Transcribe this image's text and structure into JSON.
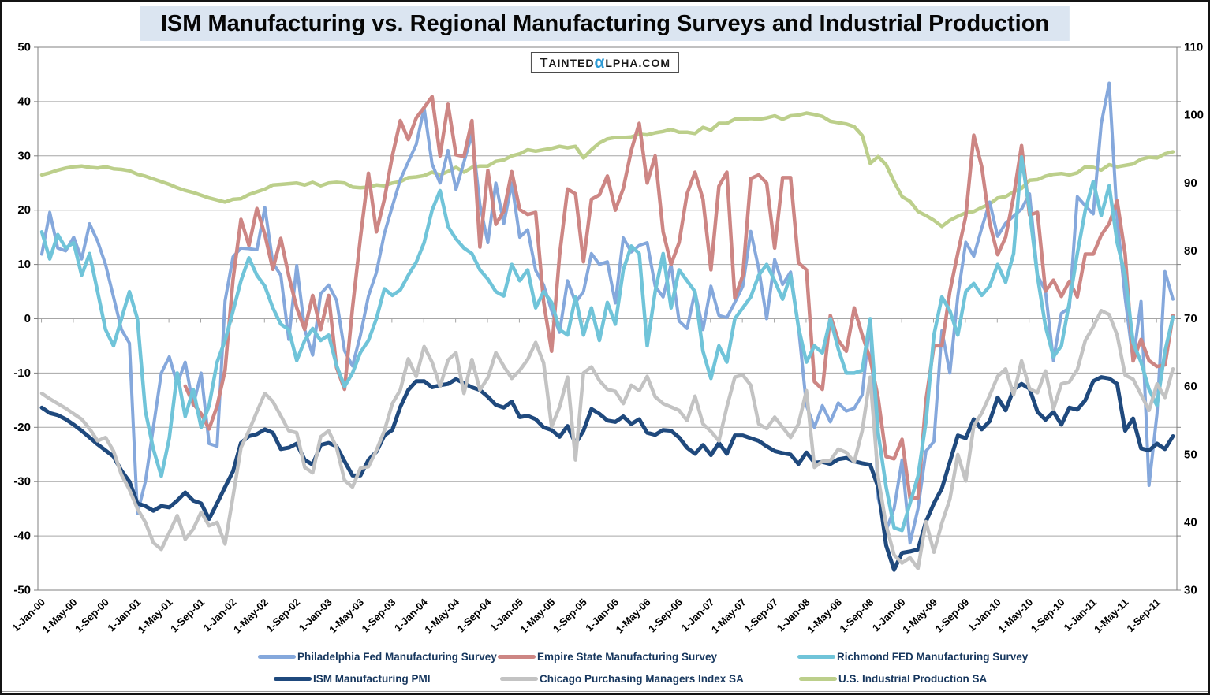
{
  "title": "ISM Manufacturing vs. Regional Manufacturing Surveys and Industrial Production",
  "watermark": {
    "part1": "T",
    "part2": "AINTED",
    "alpha": "α",
    "part3": "LPHA.COM"
  },
  "chart_data": {
    "type": "line",
    "x_tick_labels": [
      "1-Jan-00",
      "1-May-00",
      "1-Sep-00",
      "1-Jan-01",
      "1-May-01",
      "1-Sep-01",
      "1-Jan-02",
      "1-May-02",
      "1-Sep-02",
      "1-Jan-03",
      "1-May-03",
      "1-Sep-03",
      "1-Jan-04",
      "1-May-04",
      "1-Sep-04",
      "1-Jan-05",
      "1-May-05",
      "1-Sep-05",
      "1-Jan-06",
      "1-May-06",
      "1-Sep-06",
      "1-Jan-07",
      "1-May-07",
      "1-Sep-07",
      "1-Jan-08",
      "1-May-08",
      "1-Sep-08",
      "1-Jan-09",
      "1-May-09",
      "1-Sep-09",
      "1-Jan-10",
      "1-May-10",
      "1-Sep-10",
      "1-Jan-11",
      "1-May-11",
      "1-Sep-11"
    ],
    "x_tick_every_n_months": 4,
    "months_span": "Jan-2000 to Nov-2011, monthly",
    "left_axis": {
      "ticks": [
        "50",
        "40",
        "30",
        "20",
        "10",
        "0",
        "-10",
        "-20",
        "-30",
        "-40",
        "-50"
      ],
      "min": -50,
      "max": 50
    },
    "right_axis": {
      "ticks": [
        "110",
        "100",
        "90",
        "80",
        "70",
        "60",
        "50",
        "40",
        "30"
      ],
      "min": 30,
      "max": 110
    },
    "grid_color": "#A6A6A6",
    "border_color": "#808080",
    "legend_position": "bottom, two rows",
    "series": [
      {
        "name": "Philadelphia Fed Manufacturing Survey",
        "axis": "left",
        "color": "#85A8DC",
        "width": 4,
        "values": [
          11.9,
          19.6,
          13,
          12.5,
          15,
          11,
          17.5,
          14.3,
          10,
          4,
          -2,
          -4.5,
          -35.9,
          -30,
          -20,
          -10,
          -7,
          -12,
          -8,
          -16,
          -10,
          -23,
          -23.5,
          3.3,
          11.4,
          13,
          12.9,
          12.7,
          20.5,
          10.3,
          8,
          -3.8,
          9.8,
          -2,
          -6.7,
          4.6,
          6.2,
          3.4,
          -5.9,
          -8.7,
          -3,
          4.2,
          8.5,
          15.7,
          20.7,
          25.6,
          28.9,
          32.1,
          38.8,
          28.5,
          25,
          31,
          23.8,
          28.9,
          34,
          21,
          14,
          25,
          17.5,
          25,
          15,
          16.4,
          8.9,
          6.2,
          1.5,
          -2.5,
          7,
          3,
          5,
          12,
          10,
          10.5,
          2.9,
          14.9,
          12.3,
          13.5,
          14,
          6,
          4,
          10,
          -0.4,
          -1.8,
          5,
          -2,
          6,
          0.6,
          0.2,
          3,
          6,
          16.1,
          9.2,
          0,
          10.9,
          6.3,
          8.6,
          -1.5,
          -16,
          -20,
          -16,
          -19,
          -15.5,
          -17,
          -16.5,
          -14,
          0,
          -33,
          -39,
          -35,
          -26,
          -41.3,
          -35,
          -24.4,
          -22.6,
          -2.2,
          -10,
          4.2,
          14.1,
          11.5,
          16.7,
          21.5,
          15.2,
          17.6,
          18.9,
          20.2,
          23,
          8,
          5.1,
          -7.7,
          1,
          2,
          22.5,
          20.8,
          19.3,
          35.9,
          43.4,
          18.5,
          3.9,
          -7.7,
          3.2,
          -30.7,
          -17.5,
          8.7,
          3.6
        ]
      },
      {
        "name": "Empire State Manufacturing Survey",
        "axis": "left",
        "color": "#CD8684",
        "width": 4.5,
        "values": [
          null,
          null,
          null,
          null,
          null,
          null,
          null,
          null,
          null,
          null,
          null,
          null,
          null,
          null,
          null,
          null,
          null,
          null,
          -12.4,
          -15.6,
          -17.5,
          -20.3,
          -16.1,
          -9.5,
          7.2,
          18.3,
          13.5,
          20.3,
          15.5,
          9.1,
          14.8,
          7.9,
          2,
          -2,
          4.3,
          -2,
          4.3,
          -9,
          -13,
          2,
          15,
          26.8,
          16,
          22,
          30,
          36.5,
          33,
          37,
          38.9,
          40.9,
          30,
          39.5,
          30.2,
          29.9,
          36.5,
          13.2,
          27.3,
          17.4,
          19.8,
          27.1,
          20.1,
          19.2,
          19.6,
          3.1,
          -6,
          11.7,
          23.9,
          23,
          10.5,
          22,
          22.8,
          26.3,
          20,
          24,
          31,
          36,
          25,
          30,
          16,
          10,
          14,
          23,
          27,
          22,
          9,
          24.4,
          27,
          3.8,
          8,
          25.8,
          26.5,
          25,
          13,
          26,
          26,
          10.3,
          9,
          -11.6,
          -13,
          0.6,
          -4,
          -6,
          2,
          -3,
          -7.4,
          -14.6,
          -25.4,
          -25.8,
          -22.2,
          -33,
          -33,
          -15,
          -5,
          -5,
          5,
          12.1,
          18.9,
          33.8,
          28,
          17.6,
          11.8,
          15,
          22.5,
          31.9,
          19.1,
          19.6,
          5.1,
          7.1,
          4.1,
          6.9,
          4,
          11.9,
          11.9,
          15.4,
          17.5,
          21.7,
          11.9,
          -7.8,
          -3.8,
          -7.7,
          -8.8,
          -8.5,
          0.6
        ]
      },
      {
        "name": "Richmond FED Manufacturing Survey",
        "axis": "left",
        "color": "#70C4D9",
        "width": 4.5,
        "values": [
          16,
          11,
          15.5,
          13,
          14,
          8,
          12,
          5,
          -2,
          -5,
          0,
          5,
          0,
          -17,
          -24,
          -29,
          -22,
          -10,
          -18,
          -13,
          -20,
          -16,
          -8,
          -4,
          1.4,
          7,
          11.2,
          8,
          6,
          2,
          -1,
          -2,
          -7.7,
          -4,
          -1.8,
          -4,
          -3,
          -8.6,
          -12.5,
          -10,
          -6.2,
          -4,
          0,
          5.5,
          4.3,
          5.3,
          8,
          10.4,
          14,
          20,
          23.6,
          17,
          14.7,
          13,
          12,
          9,
          7.3,
          5,
          4.2,
          10,
          7,
          9,
          2,
          5,
          3,
          -2,
          -3,
          4,
          -3,
          2,
          -4,
          3,
          -1,
          9,
          13.4,
          12,
          -5,
          5,
          12,
          2,
          9,
          7,
          5,
          -6,
          -11,
          -5,
          -8,
          0,
          2,
          4,
          8,
          10,
          7,
          3.6,
          8,
          -1.6,
          -8,
          -5,
          -6.3,
          0,
          -5.6,
          -10,
          -10,
          -9.5,
          0,
          -21,
          -31,
          -38.5,
          -39,
          -34,
          -29,
          -19,
          -3,
          4,
          1.5,
          -3,
          5,
          6.5,
          4.3,
          6,
          10,
          6.7,
          12,
          29.8,
          20,
          7.8,
          -1.4,
          -7,
          -5,
          3,
          12,
          20,
          25.3,
          19,
          24.5,
          14,
          8,
          -4.4,
          -8,
          -13,
          -16,
          -6,
          0.3
        ]
      },
      {
        "name": "ISM Manufacturing PMI",
        "axis": "right",
        "color": "#1F497D",
        "width": 5,
        "values": [
          56.9,
          56.1,
          55.8,
          55.2,
          54.4,
          53.5,
          52.5,
          51.5,
          50.6,
          49.7,
          47.6,
          46,
          42.8,
          42.4,
          41.7,
          42.4,
          42.2,
          43.2,
          44.4,
          43.2,
          42.8,
          40.5,
          42.8,
          45.2,
          47.5,
          51.7,
          52.7,
          53,
          53.7,
          53.2,
          50.8,
          51,
          51.6,
          49.2,
          48.5,
          51.4,
          51.7,
          51.2,
          49,
          46.9,
          46.9,
          49.2,
          50.4,
          52.8,
          53.6,
          57,
          59.5,
          60.8,
          60.8,
          59.9,
          60.2,
          60.4,
          61.1,
          60.5,
          59.9,
          59.5,
          58.5,
          57.3,
          56.9,
          57.8,
          55.5,
          55.7,
          55.2,
          54,
          53.6,
          52.6,
          54.2,
          51.6,
          53.5,
          56.7,
          56,
          55,
          54.8,
          55.6,
          54.5,
          55.2,
          53.2,
          52.9,
          53.6,
          53.5,
          52.5,
          51,
          50.1,
          51.4,
          49.9,
          51.7,
          50.1,
          52.8,
          52.8,
          52.4,
          52,
          51.2,
          50.5,
          50.2,
          50,
          48.6,
          50.3,
          48.8,
          48.9,
          48.6,
          49.3,
          49.5,
          49,
          48.7,
          48.5,
          45.2,
          36.6,
          33,
          35.5,
          35.7,
          36,
          40.1,
          42.8,
          45,
          48.9,
          52.8,
          52.4,
          55.2,
          53.7,
          54.9,
          58.4,
          56.5,
          59.6,
          60.4,
          59.7,
          56.3,
          55.1,
          56.3,
          54.4,
          56.9,
          56.6,
          58,
          60.8,
          61.4,
          61.2,
          60.4,
          53.5,
          55.3,
          50.9,
          50.6,
          51.6,
          50.8,
          52.7
        ]
      },
      {
        "name": "Chicago Purchasing Managers Index SA",
        "axis": "right",
        "color": "#C3C3C3",
        "width": 4.5,
        "values": [
          59,
          58.2,
          57.5,
          56.8,
          56,
          55.2,
          53.8,
          52,
          52.5,
          50.5,
          47,
          44.8,
          42,
          40,
          37,
          36,
          38.5,
          41,
          37.5,
          39,
          41.5,
          39.5,
          40,
          36.8,
          43.8,
          51,
          53.5,
          56.3,
          59,
          57.8,
          55.7,
          53.5,
          53.2,
          48.1,
          47.3,
          52.6,
          53.5,
          51,
          46.2,
          45.2,
          48,
          48.2,
          50.6,
          53.5,
          57.5,
          59.5,
          64.1,
          61.5,
          65.9,
          63.6,
          60,
          63.9,
          65,
          59,
          64,
          59.5,
          61.3,
          65,
          63,
          61.2,
          62.4,
          64,
          66.5,
          63.5,
          54.1,
          57,
          61.4,
          49.2,
          62,
          62.9,
          60.9,
          59.6,
          59.3,
          57.5,
          60.2,
          59.4,
          61.5,
          58.5,
          57.5,
          57,
          56.5,
          55,
          58.6,
          54.5,
          53.4,
          52,
          57,
          61.4,
          61.7,
          60.2,
          54.5,
          53.8,
          55.5,
          54,
          52.5,
          54.5,
          59.4,
          48.1,
          49,
          49.1,
          50.8,
          50.3,
          48.9,
          53.5,
          61.4,
          46.6,
          39.6,
          35.2,
          34,
          34.8,
          33.2,
          40.1,
          35.6,
          39.9,
          43.4,
          50,
          46.1,
          54.2,
          56.1,
          58.7,
          61.5,
          62.6,
          58.8,
          63.8,
          59.7,
          59.1,
          62.3,
          56.7,
          60.4,
          60.7,
          62.5,
          66.8,
          68.8,
          71.2,
          70.6,
          67.6,
          61.7,
          61.1,
          58.8,
          56.5,
          60.4,
          58.4,
          62.6
        ]
      },
      {
        "name": "U.S. Industrial Production SA",
        "axis": "right",
        "color": "#BCCF8B",
        "width": 4.5,
        "values": [
          91.2,
          91.5,
          91.9,
          92.2,
          92.4,
          92.5,
          92.3,
          92.2,
          92.4,
          92.1,
          92,
          91.8,
          91.3,
          91,
          90.6,
          90.2,
          89.8,
          89.3,
          88.9,
          88.6,
          88.2,
          87.8,
          87.5,
          87.2,
          87.6,
          87.7,
          88.3,
          88.7,
          89.1,
          89.7,
          89.8,
          89.9,
          90,
          89.7,
          90.1,
          89.6,
          90,
          90.1,
          90,
          89.4,
          89.3,
          89.4,
          89.7,
          89.6,
          90,
          90.2,
          90.8,
          90.9,
          91.1,
          91.6,
          91.2,
          91.7,
          92.3,
          91.6,
          92.3,
          92.5,
          92.5,
          93.2,
          93.4,
          94,
          94.3,
          94.9,
          94.7,
          94.9,
          95.1,
          95.4,
          95.2,
          95.4,
          93.7,
          94.9,
          95.9,
          96.5,
          96.7,
          96.7,
          96.8,
          97.2,
          97.1,
          97.4,
          97.6,
          97.9,
          97.5,
          97.5,
          97.3,
          98.2,
          97.8,
          98.8,
          98.8,
          99.4,
          99.4,
          99.5,
          99.4,
          99.6,
          99.9,
          99.4,
          99.9,
          100,
          100.3,
          100.1,
          99.8,
          99.1,
          98.9,
          98.7,
          98.3,
          97,
          92.9,
          93.9,
          92.7,
          90.2,
          88,
          87.3,
          85.8,
          85.2,
          84.5,
          83.6,
          84.5,
          85.1,
          85.6,
          85.8,
          86.4,
          86.9,
          87.8,
          88,
          88.7,
          89.2,
          90.4,
          90.5,
          91,
          91.3,
          91.4,
          91.2,
          91.5,
          92.4,
          92.3,
          91.9,
          92.7,
          92.4,
          92.6,
          92.8,
          93.5,
          93.8,
          93.7,
          94.3,
          94.6
        ]
      }
    ]
  },
  "legend": {
    "row1_indices": [
      0,
      1,
      2
    ],
    "row2_indices": [
      3,
      4,
      5
    ]
  }
}
